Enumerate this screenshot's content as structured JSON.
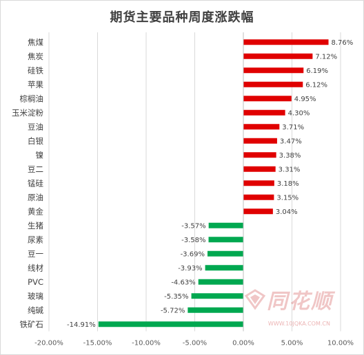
{
  "watermark": {
    "text": "同花顺",
    "url": "WWW.10JQKA.COM.CN",
    "logo_icon": "ths-logo-icon"
  },
  "chart_data": {
    "type": "bar",
    "orientation": "horizontal",
    "title": "期货主要品种周度涨跌幅",
    "categories": [
      "焦煤",
      "焦炭",
      "硅铁",
      "苹果",
      "棕榈油",
      "玉米淀粉",
      "豆油",
      "白银",
      "镍",
      "豆二",
      "锰硅",
      "原油",
      "黄金",
      "生猪",
      "尿素",
      "豆一",
      "线材",
      "PVC",
      "玻璃",
      "纯碱",
      "铁矿石"
    ],
    "values": [
      8.76,
      7.12,
      6.19,
      6.12,
      4.95,
      4.3,
      3.71,
      3.47,
      3.38,
      3.31,
      3.18,
      3.15,
      3.04,
      -3.57,
      -3.58,
      -3.69,
      -3.93,
      -4.63,
      -5.35,
      -5.72,
      -14.91
    ],
    "value_labels": [
      "8.76%",
      "7.12%",
      "6.19%",
      "6.12%",
      "4.95%",
      "4.30%",
      "3.71%",
      "3.47%",
      "3.38%",
      "3.31%",
      "3.18%",
      "3.15%",
      "3.04%",
      "-3.57%",
      "-3.58%",
      "-3.69%",
      "-3.93%",
      "-4.63%",
      "-5.35%",
      "-5.72%",
      "-14.91%"
    ],
    "xlim": [
      -20,
      10
    ],
    "x_ticks": [
      -20,
      -15,
      -10,
      -5,
      0,
      5,
      10
    ],
    "x_tick_labels": [
      "-20.00%",
      "-15.00%",
      "-10.00%",
      "-5.00%",
      "0.00%",
      "5.00%",
      "10.00%"
    ],
    "grid": true,
    "colors": {
      "positive": "#e00000",
      "negative": "#00a850",
      "grid": "#d9d9d9"
    }
  }
}
